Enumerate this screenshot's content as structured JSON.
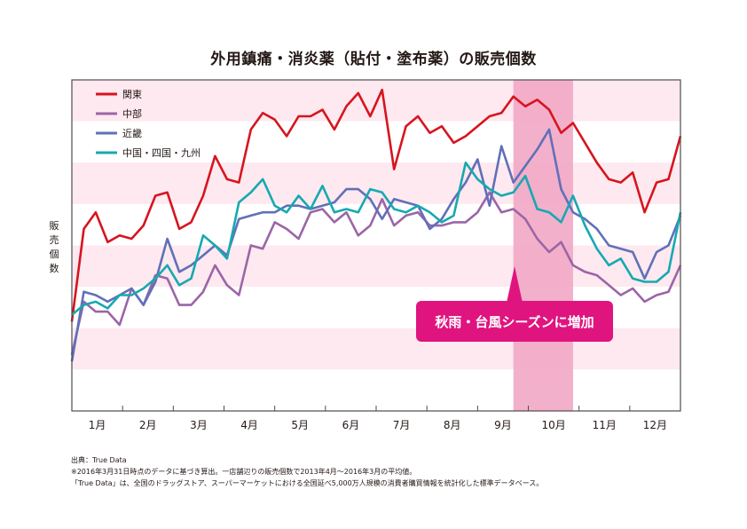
{
  "chart_data": {
    "type": "line",
    "title": "外用鎮痛・消炎薬（貼付・塗布薬）の販売個数",
    "ylabel": "販売個数",
    "x_ticks": [
      "1月",
      "2月",
      "3月",
      "4月",
      "5月",
      "6月",
      "7月",
      "8月",
      "9月",
      "10月",
      "11月",
      "12月"
    ],
    "ylim": [
      0,
      100
    ],
    "grid": "horizontal pink bands",
    "legend_position": "top-left",
    "highlight": {
      "label": "秋雨・台風シーズンに増加",
      "from_week": 37,
      "to_week": 42,
      "color": "#f2a7c5"
    },
    "series": [
      {
        "name": "関東",
        "color": "#d7141e",
        "values": [
          27,
          55,
          60,
          51,
          53,
          52,
          56,
          65,
          66,
          55,
          57,
          65,
          77,
          70,
          69,
          85,
          90,
          88,
          83,
          89,
          89,
          91,
          85,
          92,
          96,
          89,
          97,
          73,
          86,
          89,
          84,
          86,
          81,
          83,
          86,
          89,
          90,
          95,
          92,
          94,
          91,
          84,
          87,
          81,
          75,
          70,
          69,
          72,
          60,
          69,
          70,
          83
        ]
      },
      {
        "name": "中部",
        "color": "#9b65a7",
        "values": [
          17,
          33,
          30,
          30,
          26,
          37,
          32,
          41,
          40,
          32,
          32,
          36,
          44,
          38,
          35,
          50,
          49,
          57,
          55,
          52,
          60,
          61,
          57,
          60,
          53,
          56,
          64,
          56,
          59,
          60,
          56,
          56,
          57,
          57,
          60,
          66,
          60,
          61,
          58,
          52,
          48,
          51,
          44,
          42,
          41,
          38,
          35,
          37,
          33,
          35,
          36,
          44
        ]
      },
      {
        "name": "近畿",
        "color": "#6070b8",
        "values": [
          15,
          36,
          35,
          33,
          35,
          37,
          32,
          39,
          52,
          42,
          44,
          47,
          50,
          47,
          58,
          59,
          60,
          60,
          62,
          62,
          61,
          62,
          63,
          67,
          67,
          64,
          58,
          64,
          63,
          62,
          55,
          58,
          64,
          69,
          76,
          62,
          80,
          69,
          74,
          79,
          85,
          67,
          60,
          58,
          55,
          50,
          49,
          48,
          40,
          48,
          50,
          59
        ]
      },
      {
        "name": "中国・四国・九州",
        "color": "#16a9b1",
        "values": [
          29,
          32,
          33,
          31,
          35,
          35,
          37,
          40,
          44,
          38,
          40,
          53,
          50,
          46,
          63,
          66,
          70,
          62,
          60,
          65,
          61,
          68,
          60,
          61,
          60,
          67,
          66,
          61,
          60,
          62,
          60,
          57,
          59,
          75,
          70,
          67,
          65,
          66,
          71,
          61,
          60,
          57,
          65,
          56,
          49,
          44,
          46,
          40,
          39,
          39,
          42,
          60
        ]
      }
    ]
  },
  "annotation": {
    "text": "秋雨・台風シーズンに増加",
    "bg_color": "#e0147f"
  },
  "footnotes": [
    "出典：True Data",
    "※2016年3月31日時点のデータに基づき算出。一店舗辺りの販売個数で2013年4月～2016年3月の平均値。",
    "「True Data」は、全国のドラッグストア、スーパーマーケットにおける全国延べ5,000万人規模の消費者購買情報を統計化した標準データベース。"
  ]
}
